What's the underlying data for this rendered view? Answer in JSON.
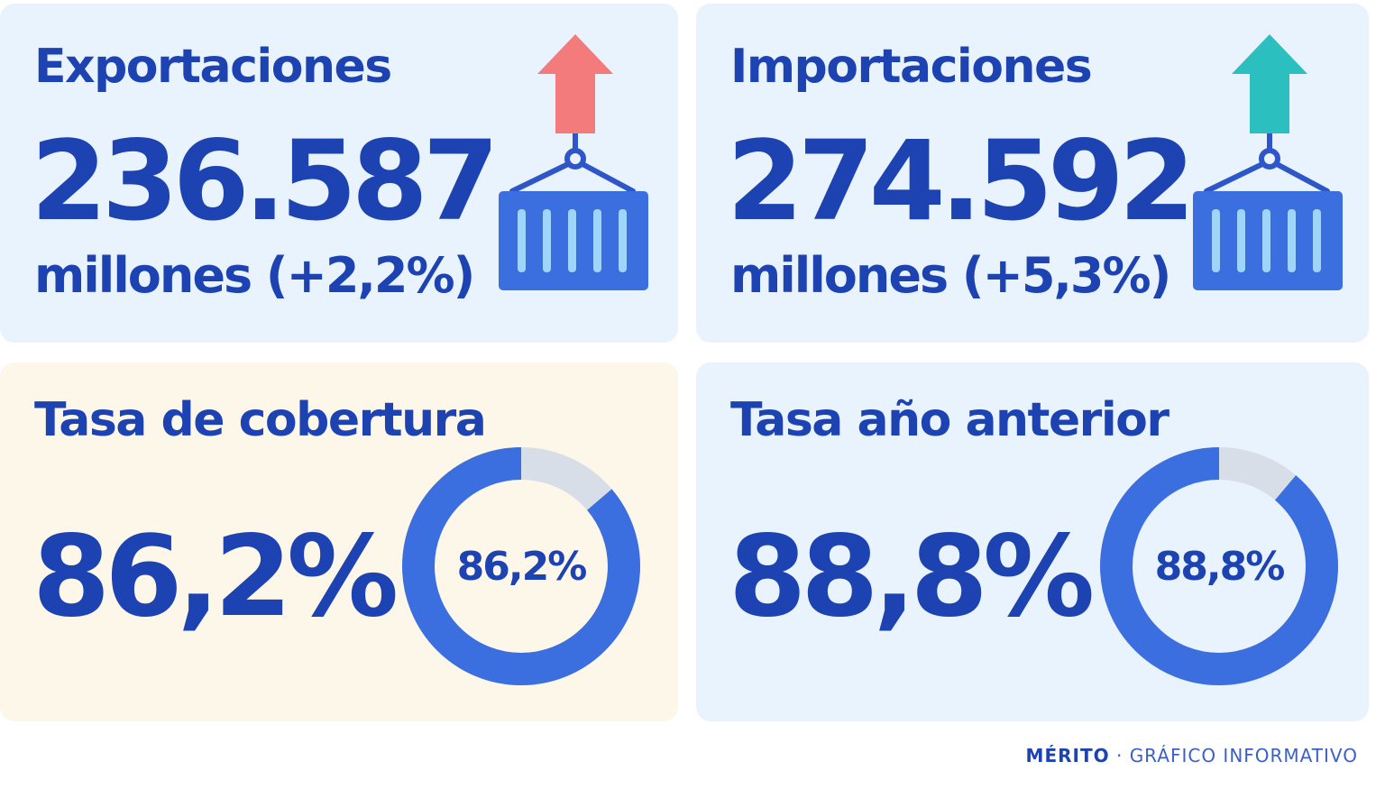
{
  "exports": {
    "title": "Exportaciones",
    "value": "236.587",
    "detail": "millones (+2,2%)",
    "arrow_color": "#f47b7b",
    "icon": "container-up-icon"
  },
  "imports": {
    "title": "Importaciones",
    "value": "274.592",
    "detail": "millones (+5,3%)",
    "arrow_color": "#2bbfbf",
    "icon": "container-up-icon"
  },
  "coverage": {
    "title": "Tasa de cobertura",
    "value": "86,2%",
    "donut_label": "86,2%",
    "fraction": 0.862
  },
  "previous": {
    "title": "Tasa año anterior",
    "value": "88,8%",
    "donut_label": "88,8%",
    "fraction": 0.888
  },
  "footer": {
    "brand": "MÉRITO",
    "separator": " · ",
    "text": "GRÁFICO INFORMATIVO"
  },
  "colors": {
    "accent": "#1d43b3",
    "ring": "#3b6fe0",
    "ring_track": "#d8dee8",
    "crate": "#3b6fe0",
    "crate_slat": "#9fd4fb"
  }
}
